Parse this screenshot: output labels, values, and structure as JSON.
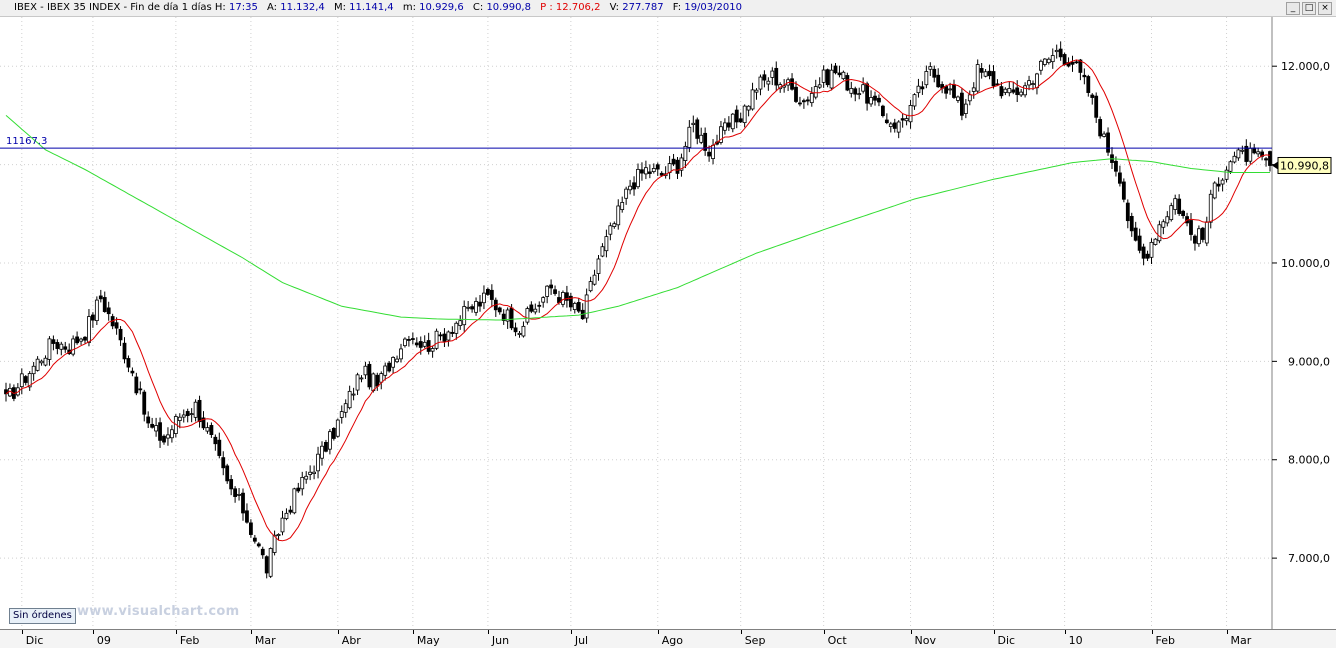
{
  "header": {
    "symbol": "IBEX - IBEX 35 INDEX - Fin de día 1 días",
    "h_label": "H:",
    "h_value": "17:35",
    "a_label": "A:",
    "a_value": "11.132,4",
    "m_label": "M:",
    "m_value": "11.141,4",
    "mn_label": "m:",
    "mn_value": "10.929,6",
    "c_label": "C:",
    "c_value": "10.990,8",
    "p_label": "P :",
    "p_value": "12.706,2",
    "v_label": "V:",
    "v_value": "277.787",
    "f_label": "F:",
    "f_value": "19/03/2010",
    "window_buttons": [
      "_",
      "□",
      "×"
    ]
  },
  "footer": {
    "orders_label": "Sin órdenes",
    "watermark": "www.visualchart.com"
  },
  "colors": {
    "candles": "#000000",
    "ma_short": "#e00000",
    "ma_long": "#33dd33",
    "hline": "#0000aa",
    "grid": "#d0d0d0",
    "last_box_bg": "#ffffc0"
  },
  "chart_data": {
    "type": "candlestick",
    "y_range": [
      6300,
      12500
    ],
    "y_ticks": [
      7000,
      8000,
      9000,
      10000,
      11000,
      12000
    ],
    "y_tick_labels": [
      "7.000,0",
      "8.000,0",
      "9.000,0",
      "10.000,0",
      "11.000,0",
      "12.000,0"
    ],
    "grid": true,
    "grid_style": "dotted",
    "x_range": [
      0,
      320
    ],
    "months": [
      {
        "label": "Dic",
        "x": 4
      },
      {
        "label": "09",
        "x": 22
      },
      {
        "label": "Feb",
        "x": 43
      },
      {
        "label": "Mar",
        "x": 62
      },
      {
        "label": "Abr",
        "x": 84
      },
      {
        "label": "May",
        "x": 103
      },
      {
        "label": "Jun",
        "x": 122
      },
      {
        "label": "Jul",
        "x": 143
      },
      {
        "label": "Ago",
        "x": 165
      },
      {
        "label": "Sep",
        "x": 186
      },
      {
        "label": "Oct",
        "x": 207
      },
      {
        "label": "Nov",
        "x": 229
      },
      {
        "label": "Dic",
        "x": 250
      },
      {
        "label": "10",
        "x": 268
      },
      {
        "label": "Feb",
        "x": 290
      },
      {
        "label": "Mar",
        "x": 309
      }
    ],
    "price_anchors": [
      [
        0,
        8600
      ],
      [
        4,
        8800
      ],
      [
        8,
        9000
      ],
      [
        12,
        9200
      ],
      [
        16,
        9150
      ],
      [
        20,
        9300
      ],
      [
        24,
        9650
      ],
      [
        28,
        9300
      ],
      [
        32,
        8900
      ],
      [
        36,
        8350
      ],
      [
        40,
        8200
      ],
      [
        44,
        8450
      ],
      [
        48,
        8550
      ],
      [
        52,
        8200
      ],
      [
        56,
        7750
      ],
      [
        60,
        7500
      ],
      [
        64,
        7100
      ],
      [
        66,
        6900
      ],
      [
        70,
        7400
      ],
      [
        74,
        7700
      ],
      [
        78,
        7950
      ],
      [
        82,
        8200
      ],
      [
        86,
        8550
      ],
      [
        90,
        8900
      ],
      [
        94,
        8750
      ],
      [
        98,
        9050
      ],
      [
        102,
        9300
      ],
      [
        106,
        9150
      ],
      [
        110,
        9250
      ],
      [
        114,
        9400
      ],
      [
        118,
        9550
      ],
      [
        122,
        9650
      ],
      [
        126,
        9500
      ],
      [
        130,
        9350
      ],
      [
        134,
        9550
      ],
      [
        138,
        9750
      ],
      [
        142,
        9600
      ],
      [
        146,
        9450
      ],
      [
        150,
        10050
      ],
      [
        154,
        10400
      ],
      [
        158,
        10800
      ],
      [
        162,
        10950
      ],
      [
        166,
        10900
      ],
      [
        170,
        11000
      ],
      [
        174,
        11400
      ],
      [
        178,
        11150
      ],
      [
        182,
        11350
      ],
      [
        186,
        11500
      ],
      [
        190,
        11800
      ],
      [
        194,
        11900
      ],
      [
        198,
        11800
      ],
      [
        202,
        11650
      ],
      [
        206,
        11850
      ],
      [
        210,
        11950
      ],
      [
        214,
        11800
      ],
      [
        218,
        11700
      ],
      [
        222,
        11500
      ],
      [
        226,
        11400
      ],
      [
        230,
        11650
      ],
      [
        234,
        11950
      ],
      [
        238,
        11800
      ],
      [
        242,
        11550
      ],
      [
        246,
        11950
      ],
      [
        250,
        11850
      ],
      [
        254,
        11700
      ],
      [
        258,
        11800
      ],
      [
        262,
        12000
      ],
      [
        266,
        12150
      ],
      [
        270,
        12050
      ],
      [
        274,
        11750
      ],
      [
        278,
        11250
      ],
      [
        282,
        10900
      ],
      [
        285,
        10250
      ],
      [
        288,
        10050
      ],
      [
        292,
        10400
      ],
      [
        296,
        10650
      ],
      [
        300,
        10300
      ],
      [
        303,
        10250
      ],
      [
        306,
        10800
      ],
      [
        310,
        11050
      ],
      [
        314,
        11100
      ],
      [
        317,
        11050
      ],
      [
        320,
        10990.8
      ]
    ],
    "long_ma_anchors": [
      [
        0,
        11500
      ],
      [
        10,
        11150
      ],
      [
        20,
        10950
      ],
      [
        40,
        10500
      ],
      [
        60,
        10050
      ],
      [
        70,
        9800
      ],
      [
        85,
        9560
      ],
      [
        100,
        9450
      ],
      [
        110,
        9430
      ],
      [
        125,
        9420
      ],
      [
        145,
        9470
      ],
      [
        155,
        9560
      ],
      [
        170,
        9750
      ],
      [
        190,
        10100
      ],
      [
        210,
        10380
      ],
      [
        230,
        10650
      ],
      [
        250,
        10850
      ],
      [
        270,
        11020
      ],
      [
        280,
        11060
      ],
      [
        290,
        11030
      ],
      [
        300,
        10960
      ],
      [
        310,
        10920
      ],
      [
        320,
        10920
      ]
    ],
    "short_ma_period": 10,
    "horizontal_line": {
      "value": 11167.3,
      "label": "11167.3"
    },
    "last_value": 10990.8,
    "last_value_label": "10.990,8"
  }
}
